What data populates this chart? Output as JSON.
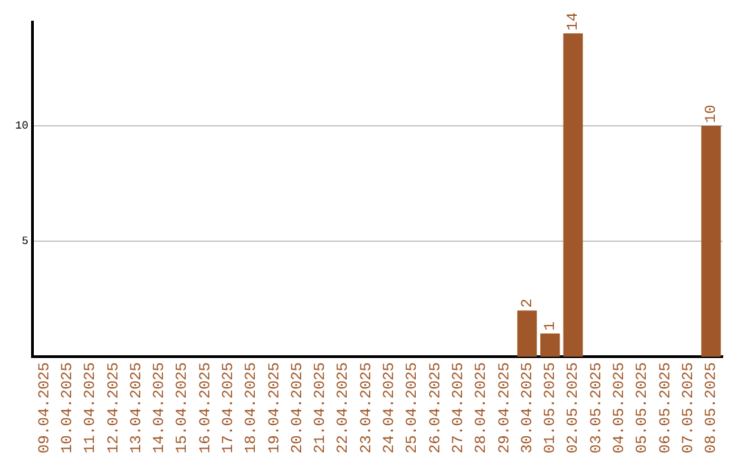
{
  "chart_data": {
    "type": "bar",
    "categories": [
      "09.04.2025",
      "10.04.2025",
      "11.04.2025",
      "12.04.2025",
      "13.04.2025",
      "14.04.2025",
      "15.04.2025",
      "16.04.2025",
      "17.04.2025",
      "18.04.2025",
      "19.04.2025",
      "20.04.2025",
      "21.04.2025",
      "22.04.2025",
      "23.04.2025",
      "24.04.2025",
      "25.04.2025",
      "26.04.2025",
      "27.04.2025",
      "28.04.2025",
      "29.04.2025",
      "30.04.2025",
      "01.05.2025",
      "02.05.2025",
      "03.05.2025",
      "04.05.2025",
      "05.05.2025",
      "06.05.2025",
      "07.05.2025",
      "08.05.2025"
    ],
    "values": [
      0,
      0,
      0,
      0,
      0,
      0,
      0,
      0,
      0,
      0,
      0,
      0,
      0,
      0,
      0,
      0,
      0,
      0,
      0,
      0,
      0,
      2,
      1,
      14,
      0,
      0,
      0,
      0,
      0,
      10
    ],
    "value_labels": [
      null,
      null,
      null,
      null,
      null,
      null,
      null,
      null,
      null,
      null,
      null,
      null,
      null,
      null,
      null,
      null,
      null,
      null,
      null,
      null,
      null,
      "2",
      "1",
      "14",
      null,
      null,
      null,
      null,
      null,
      "10"
    ],
    "color": "#a0582a",
    "ylim": [
      0,
      14.5
    ],
    "yticks": [
      5,
      10
    ],
    "grid": "y",
    "legend": false
  }
}
